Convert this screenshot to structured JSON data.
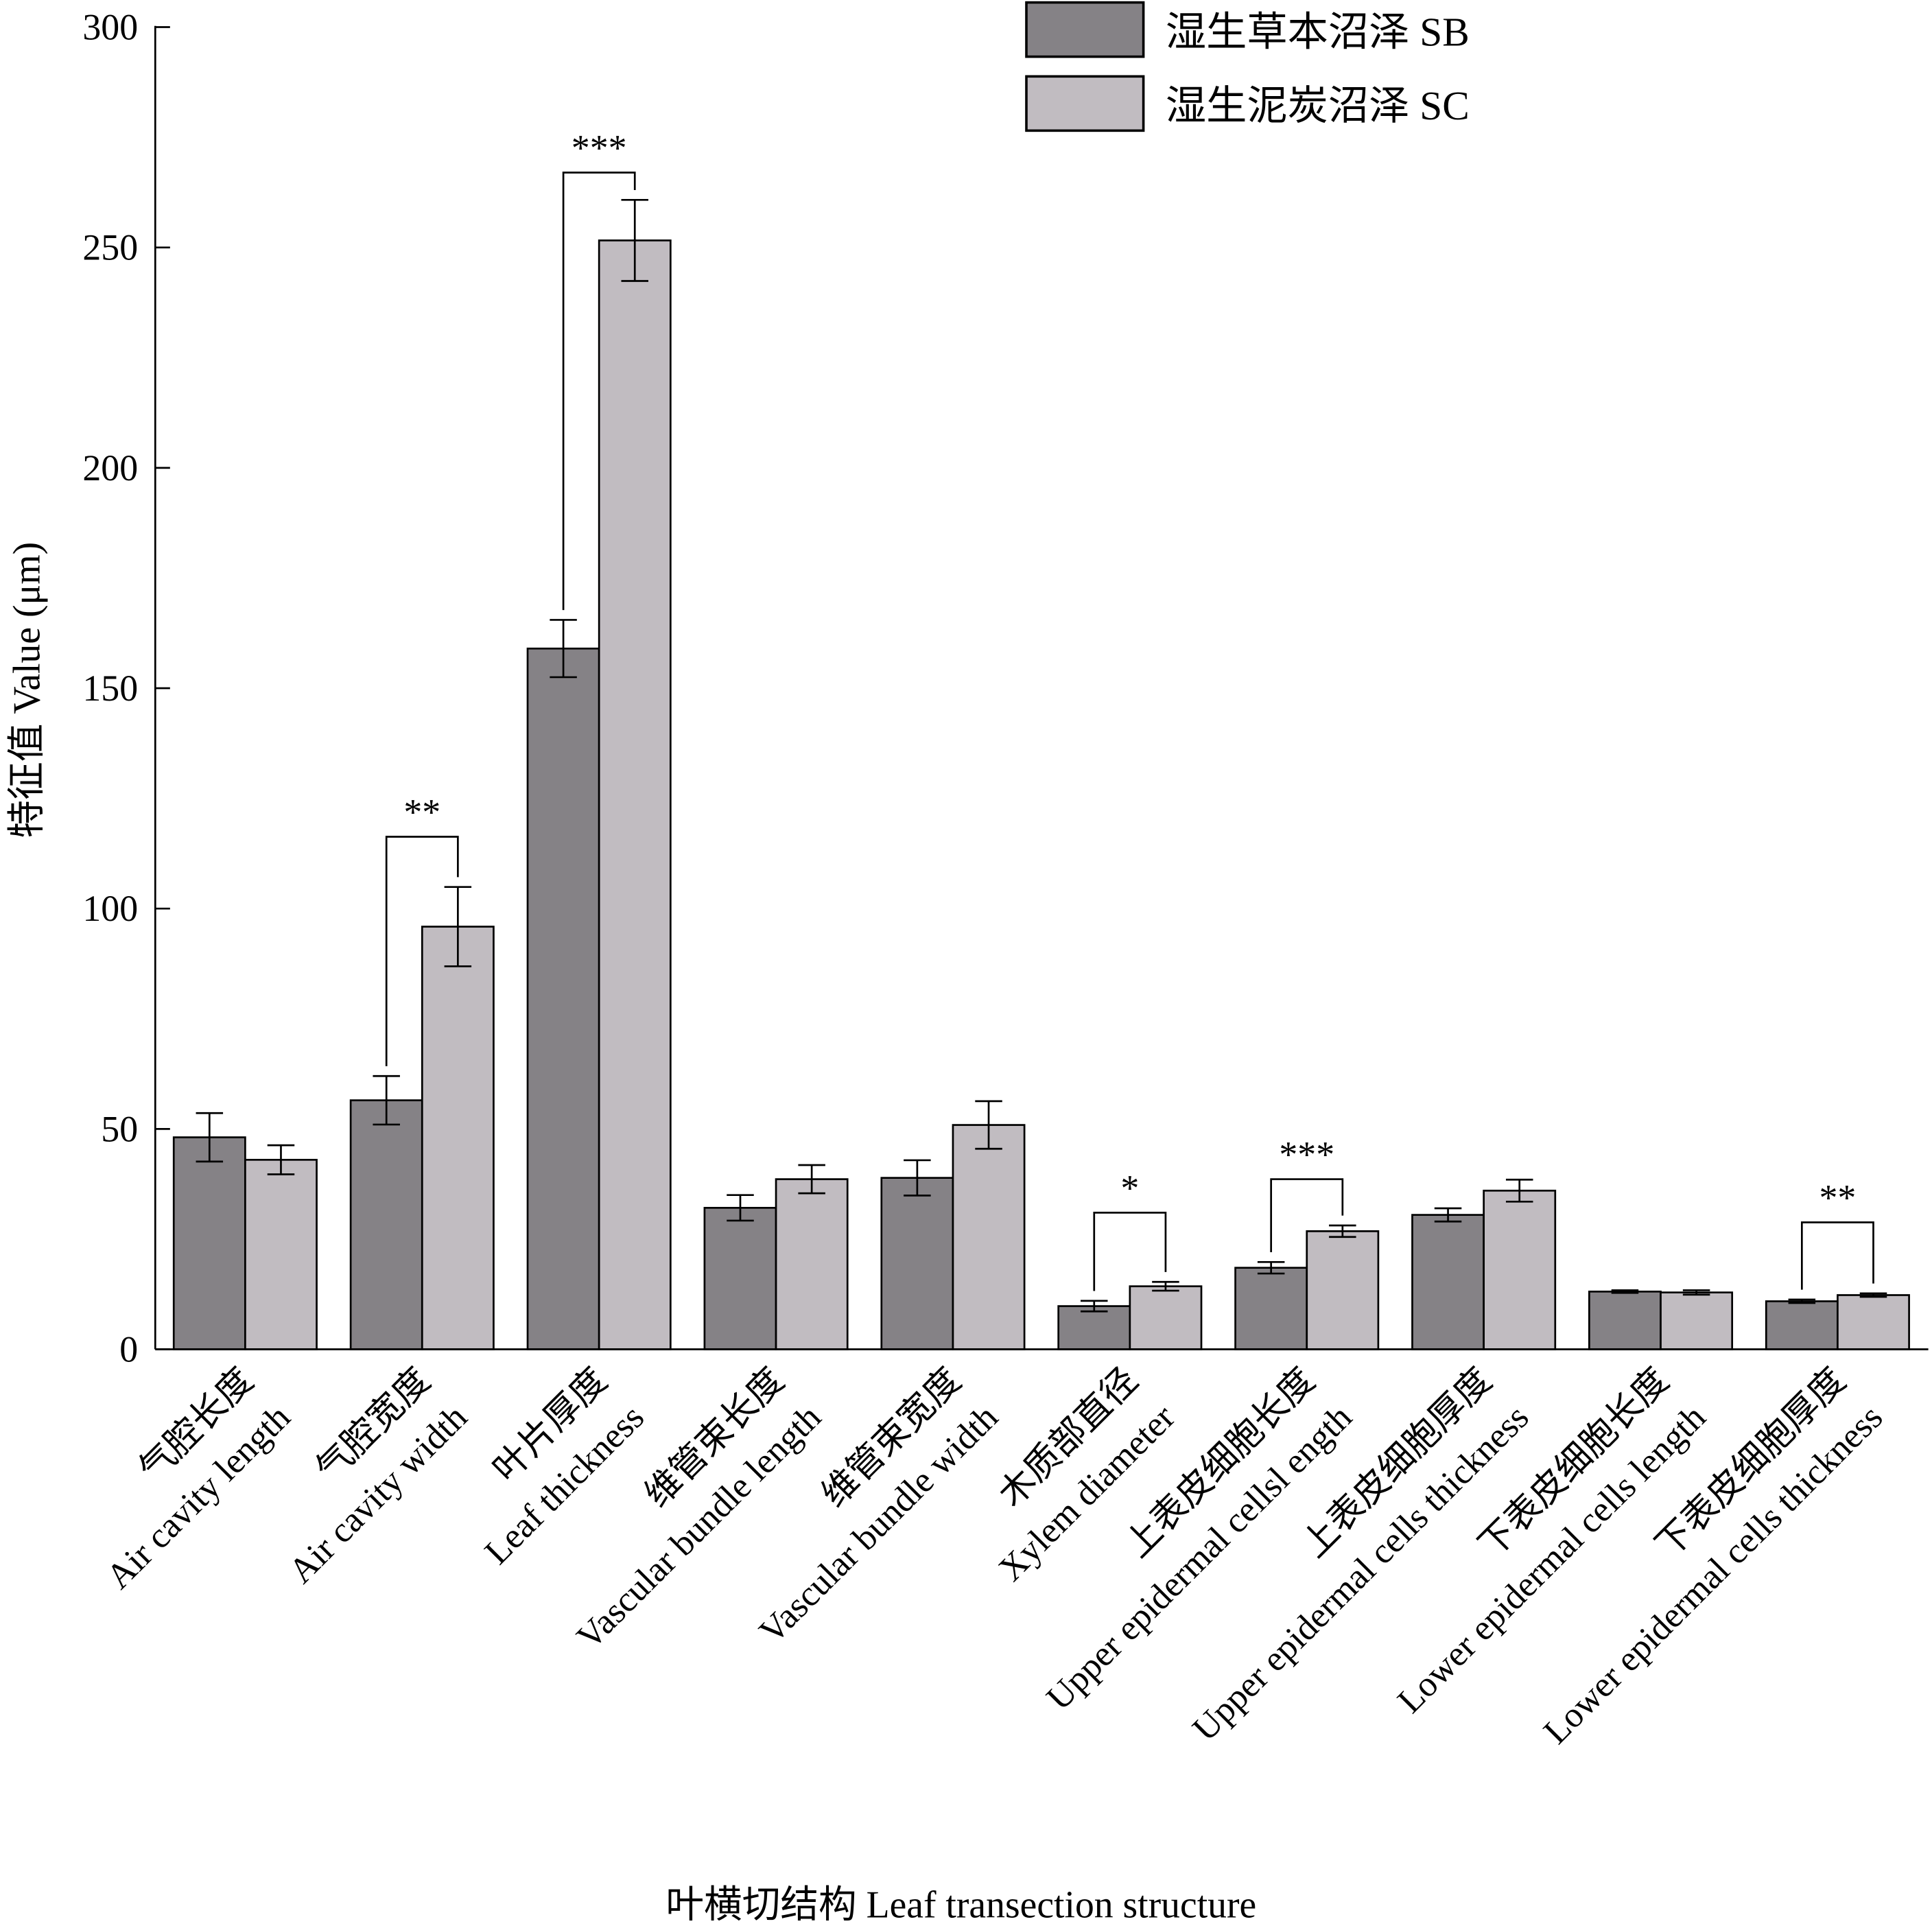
{
  "chart_data": {
    "type": "bar",
    "title": "",
    "xlabel": "叶横切结构 Leaf transection structure",
    "ylabel": "特征值 Value (μm)",
    "ylim": [
      0,
      300
    ],
    "yticks": [
      0,
      50,
      100,
      150,
      200,
      250,
      300
    ],
    "grid": false,
    "legend_position": "top-right",
    "categories": [
      {
        "cn": "气腔长度",
        "en": "Air cavity length"
      },
      {
        "cn": "气腔宽度",
        "en": "Air cavity width"
      },
      {
        "cn": "叶片厚度",
        "en": "Leaf thickness"
      },
      {
        "cn": "维管束长度",
        "en": "Vascular bundle length"
      },
      {
        "cn": "维管束宽度",
        "en": "Vascular bundle width"
      },
      {
        "cn": "木质部直径",
        "en": "Xylem diameter"
      },
      {
        "cn": "上表皮细胞长度",
        "en": "Upper epidermal cellsl ength"
      },
      {
        "cn": "上表皮细胞厚度",
        "en": "Upper epidermal cells thickness"
      },
      {
        "cn": "下表皮细胞长度",
        "en": "Lower epidermal cells length"
      },
      {
        "cn": "下表皮细胞厚度",
        "en": "Lower epidermal cells thickness"
      }
    ],
    "series": [
      {
        "name": "湿生草本沼泽 SB",
        "color": "#858286",
        "values": [
          48.1,
          56.5,
          159.0,
          32.1,
          38.9,
          9.8,
          18.5,
          30.5,
          13.1,
          10.9
        ],
        "errors": [
          5.5,
          5.5,
          6.5,
          2.9,
          4.0,
          1.2,
          1.3,
          1.5,
          0.3,
          0.4
        ]
      },
      {
        "name": "湿生泥炭沼泽 SC",
        "color": "#c1bcc1",
        "values": [
          43.0,
          95.9,
          251.6,
          38.6,
          50.9,
          14.3,
          26.8,
          36.0,
          12.9,
          12.3
        ],
        "errors": [
          3.3,
          9.0,
          9.2,
          3.2,
          5.4,
          1.0,
          1.3,
          2.5,
          0.5,
          0.4
        ]
      }
    ],
    "significance": [
      {
        "category_index": 1,
        "label": "**",
        "level": 116.3
      },
      {
        "category_index": 2,
        "label": "***",
        "level": 267.0
      },
      {
        "category_index": 5,
        "label": "*",
        "level": 31.0
      },
      {
        "category_index": 6,
        "label": "***",
        "level": 38.6
      },
      {
        "category_index": 9,
        "label": "**",
        "level": 28.8
      }
    ]
  }
}
